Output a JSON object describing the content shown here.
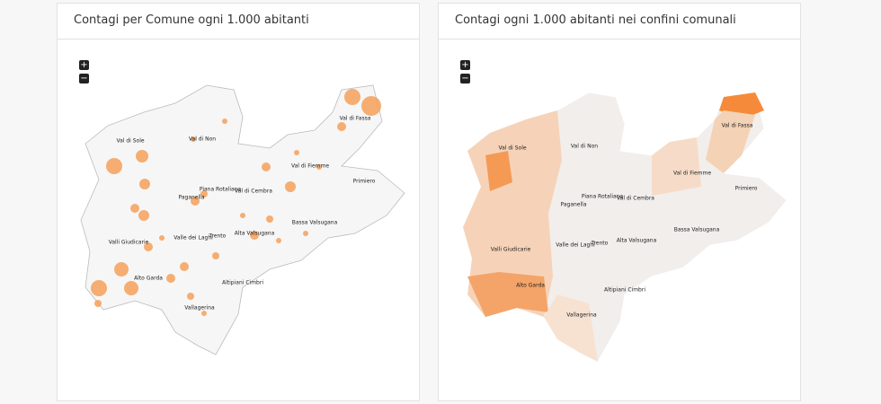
{
  "panels": [
    {
      "title": "Contagi per Comune ogni 1.000 abitanti",
      "zoom_in": "+",
      "zoom_out": "−"
    },
    {
      "title": "Contagi ogni 1.000 abitanti nei confini comunali",
      "zoom_in": "+",
      "zoom_out": "−"
    }
  ],
  "map_labels": [
    "Val di Sole",
    "Val di Non",
    "Val di Fassa",
    "Val di Fiemme",
    "Primiero",
    "Piana Rotaliana",
    "Val di Cembra",
    "Paganella",
    "Bassa Valsugana",
    "Valli Giudicarie",
    "Valle dei Laghi",
    "Trento",
    "Alta Valsugana",
    "Alto Garda",
    "Altipiani Cimbri",
    "Vallagerina"
  ]
}
